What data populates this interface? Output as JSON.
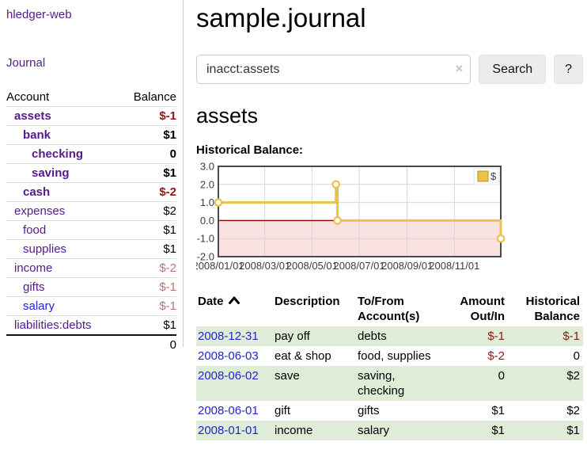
{
  "app": {
    "brand": "hledger-web"
  },
  "colors": {
    "accent_purple": "#551A8B",
    "link_blue": "#2323D3",
    "negative_strong": "#941414",
    "negative_soft": "#B87272",
    "row_stripe_green": "#DEECD8",
    "chart_gold": "#E8C24A",
    "chart_negative_fill": "#FBE2E2",
    "chart_zero_line": "#8B0000",
    "chart_grid": "#D6D6D6",
    "chart_border": "#4A4A4A"
  },
  "sidebar": {
    "journal_link": "Journal",
    "accounts": {
      "header_account": "Account",
      "header_balance": "Balance",
      "rows": [
        {
          "name": "assets",
          "depth": 1,
          "balance": "$-1",
          "bold": true,
          "neg": "strong"
        },
        {
          "name": "bank",
          "depth": 2,
          "balance": "$1",
          "bold": true,
          "neg": ""
        },
        {
          "name": "checking",
          "depth": 3,
          "balance": "0",
          "bold": true,
          "neg": ""
        },
        {
          "name": "saving",
          "depth": 3,
          "balance": "$1",
          "bold": true,
          "neg": ""
        },
        {
          "name": "cash",
          "depth": 2,
          "balance": "$-2",
          "bold": true,
          "neg": "strong"
        },
        {
          "name": "expenses",
          "depth": 1,
          "balance": "$2",
          "bold": false,
          "neg": ""
        },
        {
          "name": "food",
          "depth": 2,
          "balance": "$1",
          "bold": false,
          "neg": ""
        },
        {
          "name": "supplies",
          "depth": 2,
          "balance": "$1",
          "bold": false,
          "neg": ""
        },
        {
          "name": "income",
          "depth": 1,
          "balance": "$-2",
          "bold": false,
          "neg": "soft"
        },
        {
          "name": "gifts",
          "depth": 2,
          "balance": "$-1",
          "bold": false,
          "neg": "soft"
        },
        {
          "name": "salary",
          "depth": 2,
          "balance": "$-1",
          "bold": false,
          "neg": "soft",
          "unvisited": true
        },
        {
          "name": "liabilities:debts",
          "depth": 1,
          "balance": "$1",
          "bold": false,
          "neg": ""
        }
      ],
      "total": "0"
    }
  },
  "header": {
    "title": "sample.journal"
  },
  "search": {
    "value": "inacct:assets",
    "clear_icon": "×",
    "search_label": "Search",
    "help_label": "?"
  },
  "account_page": {
    "title": "assets",
    "chart_label": "Historical Balance:"
  },
  "chart_data": {
    "type": "line",
    "step": true,
    "title": "Historical Balance",
    "legend": "$",
    "legend_position": "top-right",
    "x_domain": [
      "2008-01-01",
      "2008-12-31"
    ],
    "ylim": [
      -2,
      3
    ],
    "y_ticks": [
      3.0,
      2.0,
      1.0,
      0.0,
      -1.0,
      -2.0
    ],
    "x_ticks": [
      "2008/01/01",
      "2008/03/01",
      "2008/05/01",
      "2008/07/01",
      "2008/09/01",
      "2008/11/01"
    ],
    "series": [
      {
        "name": "$",
        "color": "#E8C24A",
        "points": [
          {
            "date": "2008-01-01",
            "value": 1
          },
          {
            "date": "2008-06-01",
            "value": 2
          },
          {
            "date": "2008-06-03",
            "value": 0
          },
          {
            "date": "2008-12-31",
            "value": -1
          }
        ]
      }
    ],
    "negative_region_fill": "#FBE2E2",
    "zero_line_color": "#8B0000",
    "grid_color": "#D6D6D6",
    "border_color": "#4A4A4A",
    "grid": true
  },
  "register": {
    "columns": [
      {
        "label": "Date",
        "align": "left",
        "sorted": "asc"
      },
      {
        "label": "Description",
        "align": "left"
      },
      {
        "label": "To/From Account(s)",
        "align": "left"
      },
      {
        "label": "Amount Out/In",
        "align": "right"
      },
      {
        "label": "Historical Balance",
        "align": "right"
      }
    ],
    "rows": [
      {
        "date": "2008-12-31",
        "description": "pay off",
        "accounts": "debts",
        "amount": "$-1",
        "amount_neg": true,
        "balance": "$-1",
        "balance_neg": true
      },
      {
        "date": "2008-06-03",
        "description": "eat & shop",
        "accounts": "food, supplies",
        "amount": "$-2",
        "amount_neg": true,
        "balance": "0",
        "balance_neg": false
      },
      {
        "date": "2008-06-02",
        "description": "save",
        "accounts": "saving, checking",
        "amount": "0",
        "amount_neg": false,
        "balance": "$2",
        "balance_neg": false
      },
      {
        "date": "2008-06-01",
        "description": "gift",
        "accounts": "gifts",
        "amount": "$1",
        "amount_neg": false,
        "balance": "$2",
        "balance_neg": false
      },
      {
        "date": "2008-01-01",
        "description": "income",
        "accounts": "salary",
        "amount": "$1",
        "amount_neg": false,
        "balance": "$1",
        "balance_neg": false
      }
    ]
  }
}
